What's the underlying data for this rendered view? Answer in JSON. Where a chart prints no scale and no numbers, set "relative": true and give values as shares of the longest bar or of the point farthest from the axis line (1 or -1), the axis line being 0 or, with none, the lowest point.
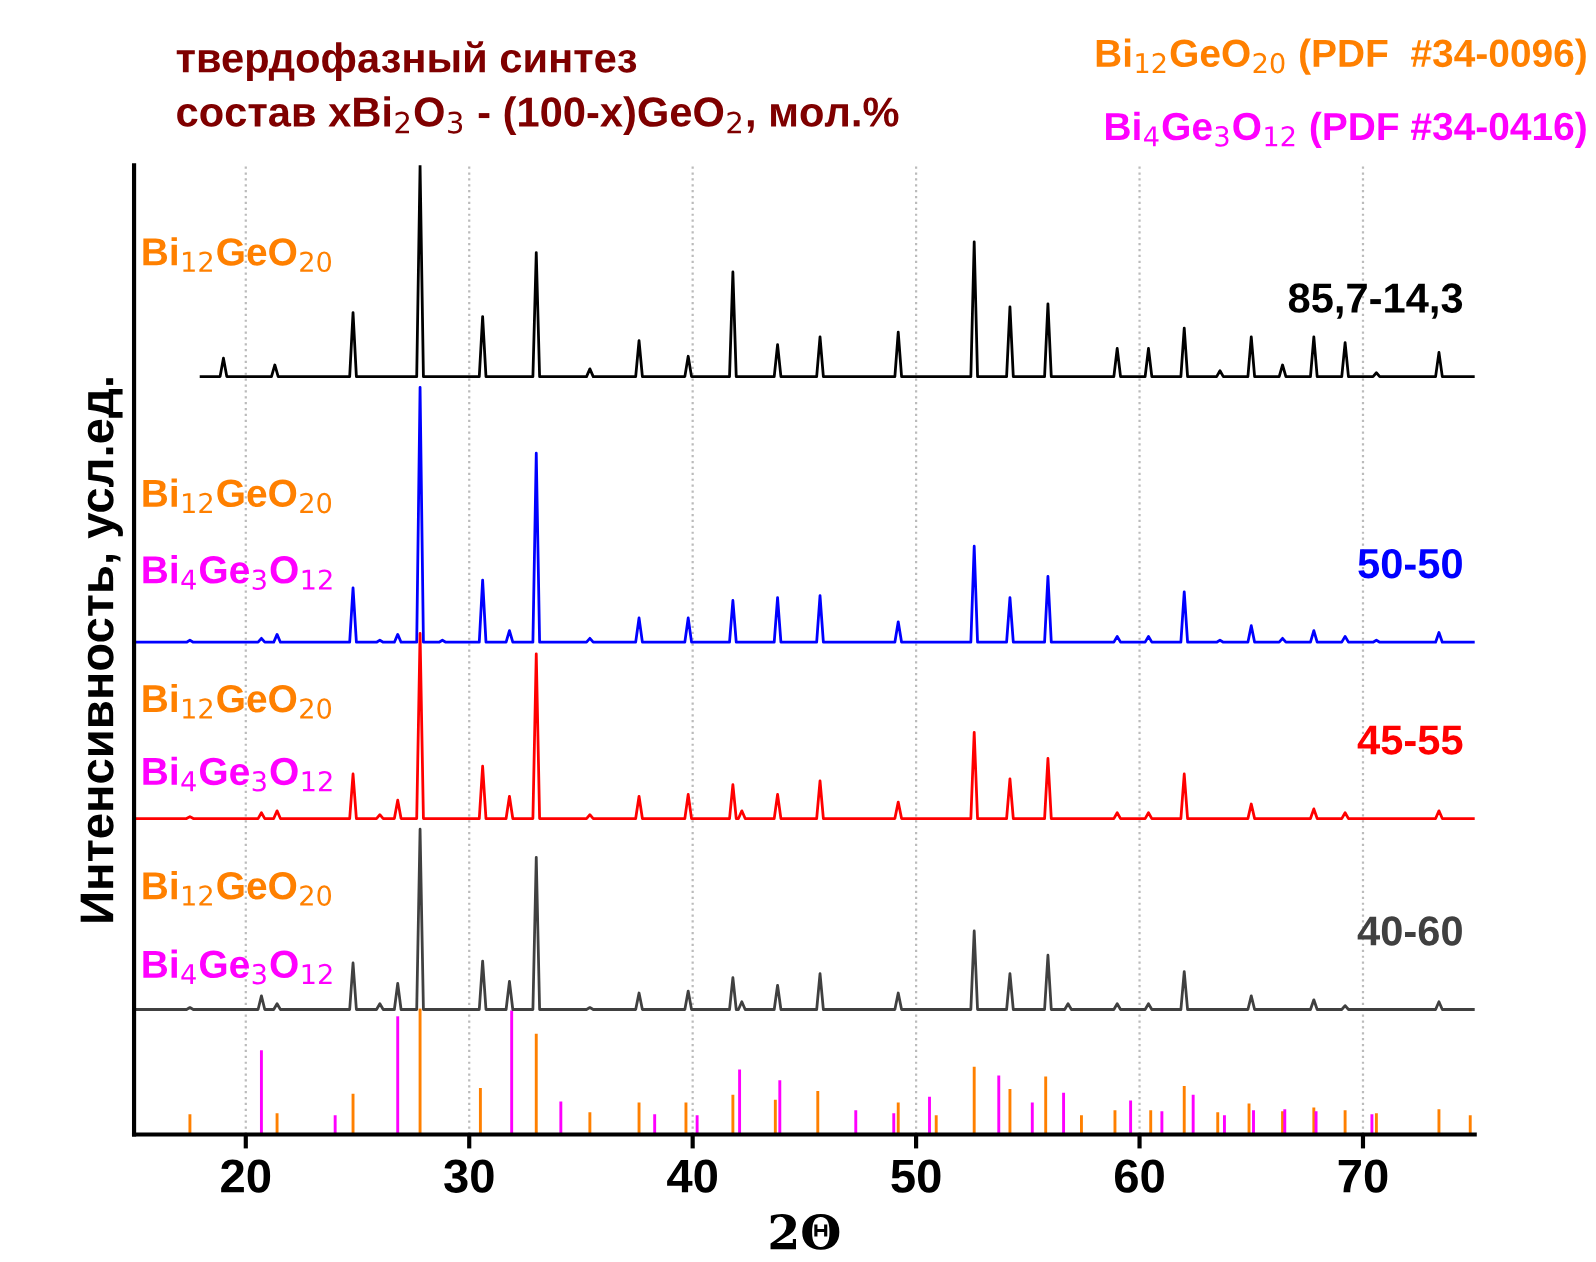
{
  "chart_data": {
    "type": "line",
    "relative": true,
    "title": "твердофазный синтез\nсостав xBi$_{2}$O$_{3}$ - (100-x)GeO$_{2}$, мол.%",
    "xlabel": "2Θ",
    "ylabel": "Интенсивность, усл.ед.",
    "xlim": [
      15,
      75
    ],
    "xticks": [
      20,
      30,
      40,
      50,
      60,
      70
    ],
    "grid": "x",
    "legend": false,
    "series": [
      {
        "name": "85,7-14,3",
        "color": "#000000",
        "x": [
          18.0,
          18.85,
          19.0,
          19.15,
          21.15,
          21.3,
          21.45,
          24.65,
          24.8,
          24.95,
          27.65,
          27.8,
          27.95,
          30.45,
          30.6,
          30.75,
          32.85,
          33.0,
          33.15,
          35.25,
          35.4,
          35.55,
          37.45,
          37.6,
          37.75,
          39.65,
          39.8,
          39.95,
          41.65,
          41.8,
          41.95,
          43.65,
          43.8,
          43.95,
          45.55,
          45.7,
          45.85,
          49.05,
          49.2,
          49.35,
          52.45,
          52.6,
          52.75,
          54.05,
          54.2,
          54.35,
          55.75,
          55.9,
          56.05,
          58.85,
          59.0,
          59.15,
          60.25,
          60.4,
          60.55,
          61.85,
          62.0,
          62.15,
          63.45,
          63.6,
          63.75,
          64.85,
          65.0,
          65.15,
          66.25,
          66.4,
          66.55,
          67.65,
          67.8,
          67.95,
          69.05,
          69.2,
          69.35,
          70.45,
          70.6,
          70.75,
          73.25,
          73.4,
          73.55,
          75.0
        ],
        "values": [
          0.782,
          0.782,
          0.801,
          0.782,
          0.782,
          0.794,
          0.782,
          0.782,
          0.848,
          0.782,
          0.782,
          1.0,
          0.782,
          0.782,
          0.844,
          0.782,
          0.782,
          0.91,
          0.782,
          0.782,
          0.79,
          0.782,
          0.782,
          0.819,
          0.782,
          0.782,
          0.803,
          0.782,
          0.782,
          0.89,
          0.782,
          0.782,
          0.815,
          0.782,
          0.782,
          0.823,
          0.782,
          0.782,
          0.828,
          0.782,
          0.782,
          0.921,
          0.782,
          0.782,
          0.854,
          0.782,
          0.782,
          0.857,
          0.782,
          0.782,
          0.811,
          0.782,
          0.782,
          0.811,
          0.782,
          0.782,
          0.832,
          0.782,
          0.782,
          0.788,
          0.782,
          0.782,
          0.823,
          0.782,
          0.782,
          0.794,
          0.782,
          0.782,
          0.823,
          0.782,
          0.782,
          0.817,
          0.782,
          0.782,
          0.786,
          0.782,
          0.782,
          0.807,
          0.782,
          0.782
        ]
      },
      {
        "name": "50-50",
        "color": "#0000ff",
        "x": [
          15.0,
          17.35,
          17.5,
          17.65,
          20.55,
          20.7,
          20.85,
          21.25,
          21.4,
          21.55,
          24.65,
          24.8,
          24.95,
          25.85,
          26.0,
          26.15,
          26.65,
          26.8,
          26.95,
          27.65,
          27.8,
          27.95,
          28.65,
          28.8,
          28.95,
          30.45,
          30.6,
          30.75,
          31.65,
          31.8,
          31.95,
          32.85,
          33.0,
          33.15,
          35.25,
          35.4,
          35.55,
          37.45,
          37.6,
          37.75,
          39.65,
          39.8,
          39.95,
          41.65,
          41.8,
          41.95,
          43.65,
          43.8,
          43.95,
          45.55,
          45.7,
          45.85,
          49.05,
          49.2,
          49.35,
          52.45,
          52.6,
          52.75,
          54.05,
          54.2,
          54.35,
          55.75,
          55.9,
          56.05,
          58.85,
          59.0,
          59.15,
          60.25,
          60.4,
          60.55,
          61.85,
          62.0,
          62.15,
          63.45,
          63.6,
          63.75,
          64.85,
          65.0,
          65.15,
          66.25,
          66.4,
          66.55,
          67.65,
          67.8,
          67.95,
          69.05,
          69.2,
          69.35,
          70.45,
          70.6,
          70.75,
          73.25,
          73.4,
          73.55,
          75.0
        ],
        "values": [
          0.508,
          0.508,
          0.51,
          0.508,
          0.508,
          0.512,
          0.508,
          0.508,
          0.516,
          0.508,
          0.508,
          0.564,
          0.508,
          0.508,
          0.51,
          0.508,
          0.508,
          0.516,
          0.508,
          0.508,
          0.771,
          0.508,
          0.508,
          0.51,
          0.508,
          0.508,
          0.572,
          0.508,
          0.508,
          0.52,
          0.508,
          0.508,
          0.703,
          0.508,
          0.508,
          0.512,
          0.508,
          0.508,
          0.533,
          0.508,
          0.508,
          0.533,
          0.508,
          0.508,
          0.551,
          0.508,
          0.508,
          0.554,
          0.508,
          0.508,
          0.556,
          0.508,
          0.508,
          0.529,
          0.508,
          0.508,
          0.607,
          0.508,
          0.508,
          0.554,
          0.508,
          0.508,
          0.576,
          0.508,
          0.508,
          0.514,
          0.508,
          0.508,
          0.514,
          0.508,
          0.508,
          0.56,
          0.508,
          0.508,
          0.51,
          0.508,
          0.508,
          0.525,
          0.508,
          0.508,
          0.512,
          0.508,
          0.508,
          0.52,
          0.508,
          0.508,
          0.514,
          0.508,
          0.508,
          0.51,
          0.508,
          0.508,
          0.518,
          0.508,
          0.508
        ]
      },
      {
        "name": "45-55",
        "color": "#ff0000",
        "x": [
          15.0,
          17.35,
          17.5,
          17.65,
          20.55,
          20.7,
          20.85,
          21.25,
          21.4,
          21.55,
          24.65,
          24.8,
          24.95,
          25.85,
          26.0,
          26.15,
          26.65,
          26.8,
          26.95,
          27.65,
          27.8,
          27.95,
          30.45,
          30.6,
          30.75,
          31.65,
          31.8,
          31.95,
          32.85,
          33.0,
          33.15,
          35.25,
          35.4,
          35.55,
          37.45,
          37.6,
          37.75,
          39.65,
          39.8,
          39.95,
          41.65,
          41.8,
          41.95,
          42.05,
          42.2,
          42.35,
          43.65,
          43.8,
          43.95,
          45.55,
          45.7,
          45.85,
          49.05,
          49.2,
          49.35,
          52.45,
          52.6,
          52.75,
          54.05,
          54.2,
          54.35,
          55.75,
          55.9,
          56.05,
          58.85,
          59.0,
          59.15,
          60.25,
          60.4,
          60.55,
          61.85,
          62.0,
          62.15,
          64.85,
          65.0,
          65.15,
          67.65,
          67.8,
          67.95,
          69.05,
          69.2,
          69.35,
          73.25,
          73.4,
          73.55,
          75.0
        ],
        "values": [
          0.326,
          0.326,
          0.328,
          0.326,
          0.326,
          0.332,
          0.326,
          0.326,
          0.334,
          0.326,
          0.326,
          0.372,
          0.326,
          0.326,
          0.33,
          0.326,
          0.326,
          0.345,
          0.326,
          0.326,
          0.517,
          0.326,
          0.326,
          0.38,
          0.326,
          0.326,
          0.349,
          0.326,
          0.326,
          0.496,
          0.326,
          0.326,
          0.33,
          0.326,
          0.326,
          0.349,
          0.326,
          0.326,
          0.351,
          0.326,
          0.326,
          0.361,
          0.326,
          0.326,
          0.334,
          0.326,
          0.326,
          0.351,
          0.326,
          0.326,
          0.365,
          0.326,
          0.326,
          0.343,
          0.326,
          0.326,
          0.415,
          0.326,
          0.326,
          0.367,
          0.326,
          0.326,
          0.388,
          0.326,
          0.326,
          0.332,
          0.326,
          0.326,
          0.332,
          0.326,
          0.326,
          0.372,
          0.326,
          0.326,
          0.341,
          0.326,
          0.326,
          0.336,
          0.326,
          0.326,
          0.332,
          0.326,
          0.326,
          0.334,
          0.326,
          0.326
        ]
      },
      {
        "name": "40-60",
        "color": "#404040",
        "x": [
          15.0,
          17.35,
          17.5,
          17.65,
          20.55,
          20.7,
          20.85,
          21.25,
          21.4,
          21.55,
          24.65,
          24.8,
          24.95,
          25.85,
          26.0,
          26.15,
          26.65,
          26.8,
          26.95,
          27.65,
          27.8,
          27.95,
          30.45,
          30.6,
          30.75,
          31.65,
          31.8,
          31.95,
          32.85,
          33.0,
          33.15,
          35.25,
          35.4,
          35.55,
          37.45,
          37.6,
          37.75,
          39.65,
          39.8,
          39.95,
          41.65,
          41.8,
          41.95,
          42.05,
          42.2,
          42.35,
          43.65,
          43.8,
          43.95,
          45.55,
          45.7,
          45.85,
          49.05,
          49.2,
          49.35,
          52.45,
          52.6,
          52.75,
          54.05,
          54.2,
          54.35,
          55.75,
          55.9,
          56.05,
          56.65,
          56.8,
          56.95,
          58.85,
          59.0,
          59.15,
          60.25,
          60.4,
          60.55,
          61.85,
          62.0,
          62.15,
          64.85,
          65.0,
          65.15,
          67.65,
          67.8,
          67.95,
          69.05,
          69.2,
          69.35,
          73.25,
          73.4,
          73.55,
          75.0
        ],
        "values": [
          0.129,
          0.129,
          0.131,
          0.129,
          0.129,
          0.143,
          0.129,
          0.129,
          0.135,
          0.129,
          0.129,
          0.177,
          0.129,
          0.129,
          0.135,
          0.129,
          0.129,
          0.156,
          0.129,
          0.129,
          0.315,
          0.129,
          0.129,
          0.179,
          0.129,
          0.129,
          0.158,
          0.129,
          0.129,
          0.286,
          0.129,
          0.129,
          0.131,
          0.129,
          0.129,
          0.146,
          0.129,
          0.129,
          0.148,
          0.129,
          0.129,
          0.162,
          0.129,
          0.129,
          0.137,
          0.129,
          0.129,
          0.154,
          0.129,
          0.129,
          0.166,
          0.129,
          0.129,
          0.146,
          0.129,
          0.129,
          0.21,
          0.129,
          0.129,
          0.166,
          0.129,
          0.129,
          0.185,
          0.129,
          0.129,
          0.135,
          0.129,
          0.129,
          0.135,
          0.129,
          0.129,
          0.135,
          0.129,
          0.129,
          0.168,
          0.129,
          0.129,
          0.143,
          0.129,
          0.129,
          0.139,
          0.129,
          0.129,
          0.133,
          0.129,
          0.129,
          0.137,
          0.129,
          0.129
        ]
      },
      {
        "name": "Bi$_{12}$GeO$_{20}$ (PDF  #34-0096)",
        "type": "bar",
        "color": "#ff8000",
        "x": [
          17.5,
          21.4,
          24.8,
          27.8,
          30.5,
          33.0,
          35.4,
          37.6,
          39.7,
          41.8,
          43.7,
          45.6,
          49.2,
          50.9,
          52.6,
          54.2,
          55.8,
          57.4,
          58.9,
          60.5,
          62.0,
          63.5,
          64.9,
          66.4,
          67.8,
          69.2,
          70.6,
          73.4,
          74.8
        ],
        "values": [
          0.021,
          0.022,
          0.042,
          0.13,
          0.048,
          0.104,
          0.023,
          0.033,
          0.033,
          0.041,
          0.036,
          0.045,
          0.033,
          0.02,
          0.07,
          0.047,
          0.06,
          0.02,
          0.025,
          0.025,
          0.05,
          0.023,
          0.032,
          0.024,
          0.028,
          0.025,
          0.022,
          0.026,
          0.02
        ]
      },
      {
        "name": "Bi$_{4}$Ge$_{3}$O$_{12}$ (PDF #34-0416)",
        "type": "bar",
        "color": "#ff00ff",
        "x": [
          20.7,
          24.0,
          26.8,
          31.9,
          34.1,
          38.3,
          40.2,
          42.1,
          43.9,
          47.3,
          49.0,
          50.6,
          53.7,
          55.2,
          56.6,
          59.6,
          61.0,
          62.4,
          63.8,
          65.1,
          66.5,
          67.9,
          70.4
        ],
        "values": [
          0.087,
          0.02,
          0.122,
          0.128,
          0.034,
          0.021,
          0.02,
          0.067,
          0.056,
          0.025,
          0.022,
          0.039,
          0.061,
          0.033,
          0.043,
          0.035,
          0.024,
          0.041,
          0.02,
          0.025,
          0.026,
          0.024,
          0.021
        ]
      }
    ],
    "annotations": [
      "Bi$_{12}$GeO$_{20}$",
      "Bi$_{12}$GeO$_{20}$",
      "Bi$_{4}$Ge$_{3}$O$_{12}$",
      "Bi$_{12}$GeO$_{20}$",
      "Bi$_{4}$Ge$_{3}$O$_{12}$",
      "Bi$_{12}$GeO$_{20}$",
      "Bi$_{4}$Ge$_{3}$O$_{12}$"
    ]
  }
}
